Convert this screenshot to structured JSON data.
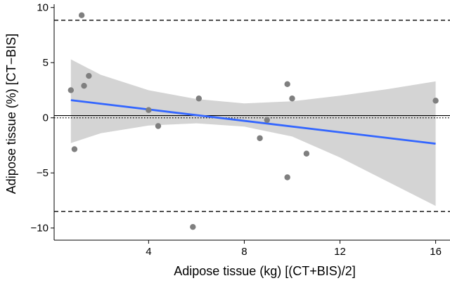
{
  "chart_data": {
    "type": "scatter",
    "title": "",
    "xlabel": "Adipose tissue (kg) [(CT+BIS)/2]",
    "ylabel": "Adipose tissue (%) [CT−BIS]",
    "xlim": [
      0.05,
      16.6
    ],
    "ylim": [
      -11.1,
      10.3
    ],
    "xticks": [
      4,
      8,
      12,
      16
    ],
    "xtick_labels": [
      "4",
      "8",
      "12",
      "16"
    ],
    "yticks": [
      -10,
      -5,
      0,
      5,
      10
    ],
    "ytick_labels": [
      "−10",
      "−5",
      "0",
      "5",
      "10"
    ],
    "grid": false,
    "points": {
      "x": [
        0.75,
        0.9,
        1.2,
        1.3,
        1.5,
        4.0,
        4.4,
        5.85,
        6.1,
        8.65,
        8.95,
        9.8,
        9.8,
        10.0,
        10.6,
        16.0
      ],
      "y": [
        2.5,
        -2.85,
        9.3,
        2.9,
        3.8,
        0.7,
        -0.75,
        -9.9,
        1.75,
        -1.85,
        -0.2,
        -5.4,
        3.05,
        1.75,
        -3.25,
        1.55
      ]
    },
    "regression_line": {
      "x": [
        0.75,
        16.0
      ],
      "y": [
        1.6,
        -2.35
      ]
    },
    "confidence_band": {
      "x": [
        0.75,
        2,
        4,
        6,
        8,
        10,
        12,
        14,
        16
      ],
      "upper": [
        5.3,
        3.9,
        2.5,
        1.7,
        1.3,
        1.5,
        2.0,
        2.6,
        3.3
      ],
      "lower": [
        -2.3,
        -1.4,
        -0.7,
        -0.5,
        -0.8,
        -1.7,
        -3.6,
        -5.8,
        -8.0
      ]
    },
    "mean_difference": 0.2,
    "zero_line": 0,
    "limits_of_agreement": [
      8.85,
      -8.5
    ],
    "colors": {
      "points": "#7f7f7f",
      "regression": "#3366ff",
      "band": "#d4d4d4",
      "lines": "#000000"
    }
  }
}
